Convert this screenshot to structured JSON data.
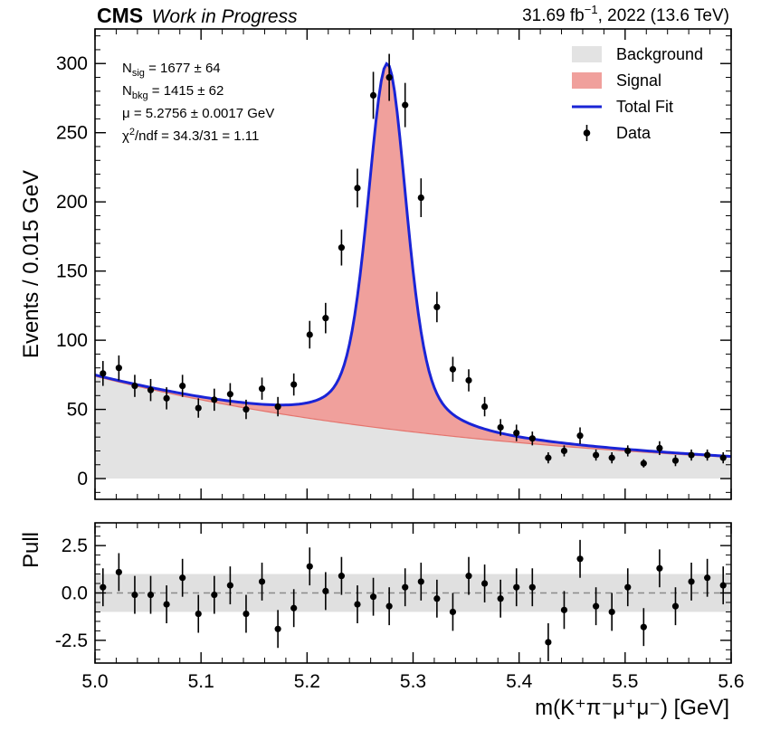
{
  "header": {
    "experiment": "CMS",
    "status": "Work in Progress",
    "lumi_value": "31.69 fb",
    "lumi_exp": "−1",
    "lumi_rest": ", 2022 (13.6 TeV)"
  },
  "stats": [
    {
      "sym": "N",
      "sub": "sig",
      "rest": " = 1677 ± 64"
    },
    {
      "sym": "N",
      "sub": "bkg",
      "rest": " = 1415 ± 62"
    },
    {
      "sym": "μ",
      "rest": " = 5.2756 ± 0.0017 GeV"
    },
    {
      "sym": "χ",
      "sup": "2",
      "rest": "/ndf = 34.3/31 = 1.11"
    }
  ],
  "legend": [
    {
      "label": "Background",
      "kind": "fill",
      "color": "#e3e3e3"
    },
    {
      "label": "Signal",
      "kind": "fill",
      "color": "#f0a09c"
    },
    {
      "label": "Total Fit",
      "kind": "line",
      "color": "#1a24d6"
    },
    {
      "label": "Data",
      "kind": "point",
      "color": "#000000"
    }
  ],
  "chart_data": [
    {
      "type": "line",
      "panel": "main",
      "ylabel": "Events / 0.015 GeV",
      "xlim": [
        5.0,
        5.6
      ],
      "ylim": [
        -15,
        325
      ],
      "yticks": [
        0,
        50,
        100,
        150,
        200,
        250,
        300
      ],
      "background_model": {
        "form": "exponential",
        "a": 74.0,
        "slope": -2.62
      },
      "signal_model": {
        "mean": 5.2756,
        "height": 264,
        "sigma_core": 0.018,
        "gamma_tail": 0.024
      },
      "data": {
        "x": [
          5.0075,
          5.0225,
          5.0375,
          5.0525,
          5.0675,
          5.0825,
          5.0975,
          5.1125,
          5.1275,
          5.1425,
          5.1575,
          5.1725,
          5.1875,
          5.2025,
          5.2175,
          5.2325,
          5.2475,
          5.2625,
          5.2775,
          5.2925,
          5.3075,
          5.3225,
          5.3375,
          5.3525,
          5.3675,
          5.3825,
          5.3975,
          5.4125,
          5.4275,
          5.4425,
          5.4575,
          5.4725,
          5.4875,
          5.5025,
          5.5175,
          5.5325,
          5.5475,
          5.5625,
          5.5775,
          5.5925
        ],
        "y": [
          76,
          80,
          67,
          64,
          58,
          67,
          51,
          57,
          61,
          50,
          65,
          52,
          68,
          104,
          116,
          167,
          210,
          277,
          290,
          270,
          203,
          124,
          79,
          71,
          52,
          37,
          33,
          29,
          15,
          20,
          31,
          17,
          15,
          20,
          11,
          22,
          13,
          17,
          17,
          15
        ],
        "yerr": [
          9,
          9,
          8,
          8,
          8,
          8,
          7,
          8,
          8,
          7,
          8,
          7,
          8,
          10,
          11,
          13,
          14,
          17,
          17,
          16,
          14,
          11,
          9,
          8,
          7,
          6,
          6,
          5,
          4,
          4,
          6,
          4,
          4,
          4,
          3,
          5,
          4,
          4,
          4,
          4
        ]
      }
    },
    {
      "type": "scatter",
      "panel": "pull",
      "ylabel": "Pull",
      "xlabel": "m(K⁺π⁻μ⁺μ⁻) [GeV]",
      "xlim": [
        5.0,
        5.6
      ],
      "ylim": [
        -3.7,
        3.7
      ],
      "yticks": [
        2.5,
        0.0,
        -2.5
      ],
      "ytick_labels": [
        "2.5",
        "0.0",
        "-2.5"
      ],
      "xticks": [
        5.0,
        5.1,
        5.2,
        5.3,
        5.4,
        5.5,
        5.6
      ],
      "xtick_labels": [
        "5.0",
        "5.1",
        "5.2",
        "5.3",
        "5.4",
        "5.5",
        "5.6"
      ],
      "band": [
        -1,
        1
      ],
      "data": {
        "x": [
          5.0075,
          5.0225,
          5.0375,
          5.0525,
          5.0675,
          5.0825,
          5.0975,
          5.1125,
          5.1275,
          5.1425,
          5.1575,
          5.1725,
          5.1875,
          5.2025,
          5.2175,
          5.2325,
          5.2475,
          5.2625,
          5.2775,
          5.2925,
          5.3075,
          5.3225,
          5.3375,
          5.3525,
          5.3675,
          5.3825,
          5.3975,
          5.4125,
          5.4275,
          5.4425,
          5.4575,
          5.4725,
          5.4875,
          5.5025,
          5.5175,
          5.5325,
          5.5475,
          5.5625,
          5.5775,
          5.5925
        ],
        "y": [
          0.3,
          1.1,
          -0.1,
          -0.1,
          -0.6,
          0.8,
          -1.1,
          -0.1,
          0.4,
          -1.1,
          0.6,
          -1.9,
          -0.8,
          1.4,
          0.1,
          0.9,
          -0.6,
          -0.2,
          -0.7,
          0.3,
          0.6,
          -0.3,
          -1.0,
          0.9,
          0.5,
          -0.3,
          0.3,
          0.3,
          -2.6,
          -0.9,
          1.8,
          -0.7,
          -1.0,
          0.3,
          -1.8,
          1.3,
          -0.7,
          0.6,
          0.8,
          0.4
        ]
      }
    }
  ]
}
